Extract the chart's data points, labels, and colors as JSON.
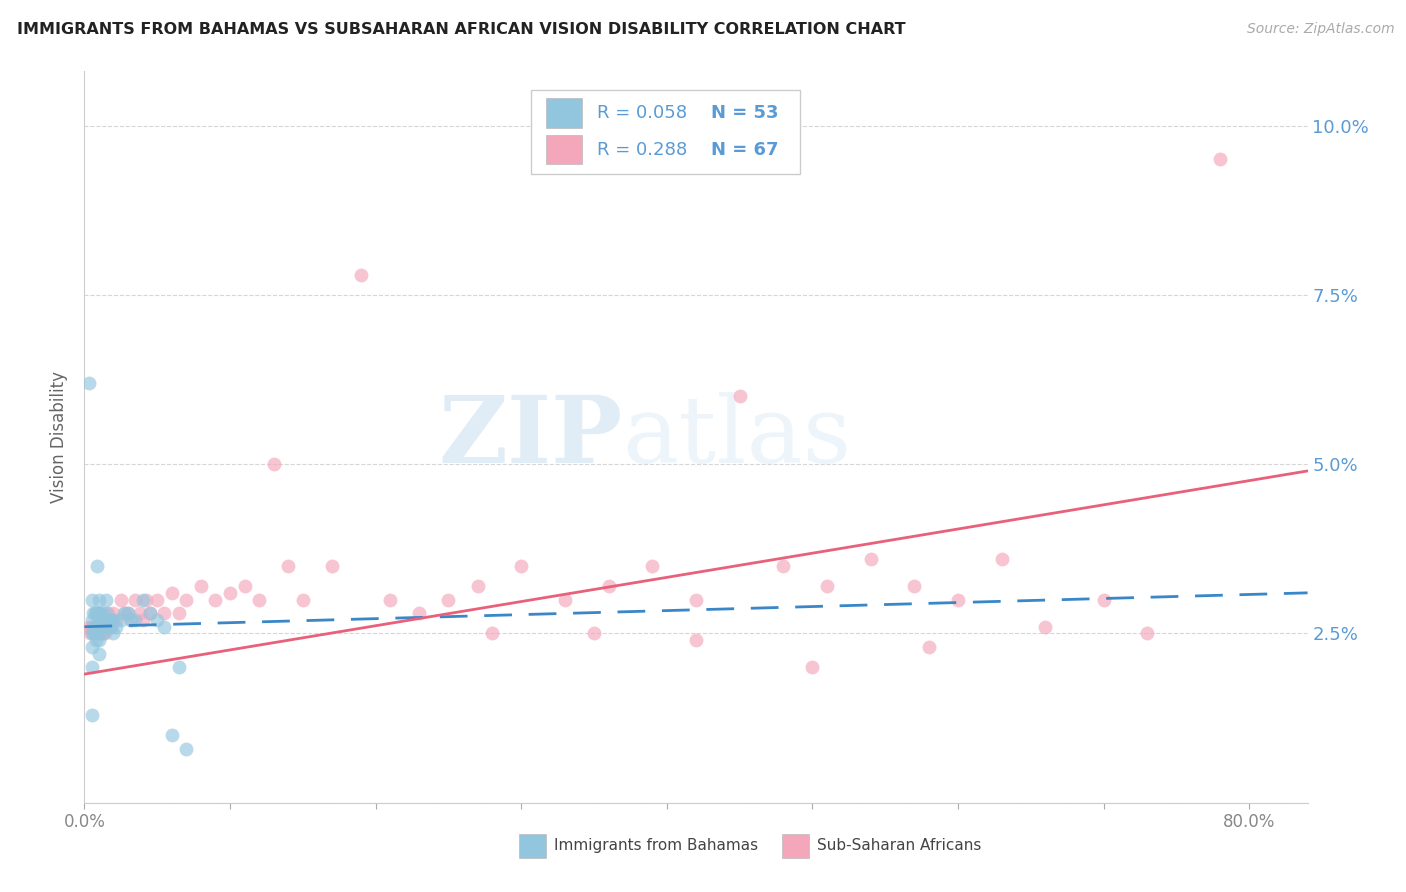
{
  "title": "IMMIGRANTS FROM BAHAMAS VS SUBSAHARAN AFRICAN VISION DISABILITY CORRELATION CHART",
  "source": "Source: ZipAtlas.com",
  "ylabel": "Vision Disability",
  "yticks": [
    0.0,
    0.025,
    0.05,
    0.075,
    0.1
  ],
  "ytick_labels": [
    "",
    "2.5%",
    "5.0%",
    "7.5%",
    "10.0%"
  ],
  "xlim": [
    0.0,
    0.84
  ],
  "ylim": [
    0.0,
    0.108
  ],
  "legend_r1": "R = 0.058",
  "legend_n1": "N = 53",
  "legend_r2": "R = 0.288",
  "legend_n2": "N = 67",
  "color_blue": "#92c5de",
  "color_pink": "#f4a6bb",
  "color_blue_line": "#3a87c8",
  "color_pink_line": "#e8607a",
  "color_axis_labels": "#5b9bd5",
  "color_title": "#222222",
  "color_source": "#aaaaaa",
  "watermark_zip": "ZIP",
  "watermark_atlas": "atlas",
  "blue_line_x": [
    0.0,
    0.84
  ],
  "blue_line_y": [
    0.026,
    0.031
  ],
  "pink_line_x": [
    0.0,
    0.84
  ],
  "pink_line_y": [
    0.019,
    0.049
  ],
  "blue_x": [
    0.003,
    0.005,
    0.005,
    0.005,
    0.005,
    0.005,
    0.005,
    0.006,
    0.006,
    0.007,
    0.007,
    0.008,
    0.008,
    0.008,
    0.009,
    0.009,
    0.009,
    0.01,
    0.01,
    0.01,
    0.01,
    0.01,
    0.01,
    0.01,
    0.011,
    0.011,
    0.012,
    0.012,
    0.013,
    0.013,
    0.014,
    0.015,
    0.015,
    0.015,
    0.016,
    0.017,
    0.018,
    0.019,
    0.02,
    0.02,
    0.022,
    0.025,
    0.027,
    0.03,
    0.032,
    0.035,
    0.04,
    0.045,
    0.05,
    0.055,
    0.06,
    0.065,
    0.07
  ],
  "blue_y": [
    0.062,
    0.03,
    0.027,
    0.025,
    0.023,
    0.02,
    0.013,
    0.028,
    0.025,
    0.028,
    0.026,
    0.028,
    0.026,
    0.024,
    0.035,
    0.028,
    0.026,
    0.03,
    0.028,
    0.027,
    0.026,
    0.025,
    0.024,
    0.022,
    0.028,
    0.027,
    0.028,
    0.026,
    0.027,
    0.025,
    0.026,
    0.03,
    0.028,
    0.027,
    0.027,
    0.026,
    0.026,
    0.027,
    0.027,
    0.025,
    0.026,
    0.027,
    0.028,
    0.028,
    0.027,
    0.027,
    0.03,
    0.028,
    0.027,
    0.026,
    0.01,
    0.02,
    0.008
  ],
  "pink_x": [
    0.003,
    0.004,
    0.005,
    0.006,
    0.007,
    0.008,
    0.009,
    0.01,
    0.011,
    0.012,
    0.013,
    0.014,
    0.015,
    0.016,
    0.017,
    0.018,
    0.02,
    0.022,
    0.025,
    0.028,
    0.03,
    0.032,
    0.035,
    0.038,
    0.04,
    0.042,
    0.045,
    0.05,
    0.055,
    0.06,
    0.065,
    0.07,
    0.08,
    0.09,
    0.1,
    0.11,
    0.12,
    0.13,
    0.14,
    0.15,
    0.17,
    0.19,
    0.21,
    0.23,
    0.25,
    0.27,
    0.3,
    0.33,
    0.36,
    0.39,
    0.42,
    0.45,
    0.48,
    0.51,
    0.54,
    0.57,
    0.6,
    0.63,
    0.66,
    0.7,
    0.73,
    0.78,
    0.28,
    0.35,
    0.42,
    0.5,
    0.58
  ],
  "pink_y": [
    0.026,
    0.025,
    0.026,
    0.026,
    0.025,
    0.026,
    0.025,
    0.028,
    0.026,
    0.025,
    0.026,
    0.025,
    0.026,
    0.028,
    0.027,
    0.026,
    0.028,
    0.027,
    0.03,
    0.028,
    0.028,
    0.027,
    0.03,
    0.028,
    0.027,
    0.03,
    0.028,
    0.03,
    0.028,
    0.031,
    0.028,
    0.03,
    0.032,
    0.03,
    0.031,
    0.032,
    0.03,
    0.05,
    0.035,
    0.03,
    0.035,
    0.078,
    0.03,
    0.028,
    0.03,
    0.032,
    0.035,
    0.03,
    0.032,
    0.035,
    0.03,
    0.06,
    0.035,
    0.032,
    0.036,
    0.032,
    0.03,
    0.036,
    0.026,
    0.03,
    0.025,
    0.095,
    0.025,
    0.025,
    0.024,
    0.02,
    0.023
  ]
}
